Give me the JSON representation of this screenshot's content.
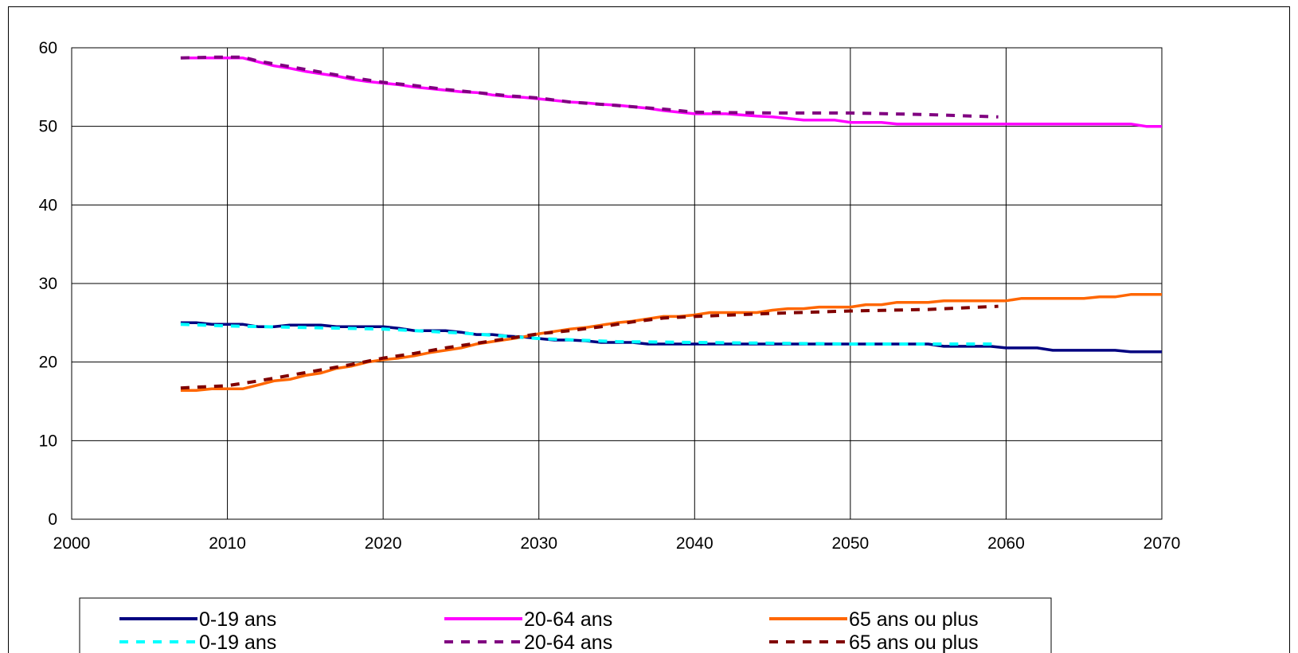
{
  "chart_data": {
    "type": "line",
    "title": "",
    "xlabel": "",
    "ylabel": "",
    "xlim": [
      2000,
      2070
    ],
    "ylim": [
      0,
      60
    ],
    "x_ticks": [
      2000,
      2010,
      2020,
      2030,
      2040,
      2050,
      2060,
      2070
    ],
    "y_ticks": [
      0,
      10,
      20,
      30,
      40,
      50,
      60
    ],
    "grid": true,
    "legend_placement": "bottom",
    "series": [
      {
        "name": "0-19 ans",
        "style": "solid",
        "color": "#000080",
        "x": [
          2007,
          2008,
          2009,
          2010,
          2011,
          2012,
          2013,
          2014,
          2015,
          2016,
          2017,
          2018,
          2019,
          2020,
          2021,
          2022,
          2023,
          2024,
          2025,
          2026,
          2027,
          2028,
          2029,
          2030,
          2031,
          2032,
          2033,
          2034,
          2035,
          2036,
          2037,
          2038,
          2039,
          2040,
          2045,
          2050,
          2055,
          2056,
          2059,
          2060,
          2062,
          2063,
          2065,
          2067,
          2068,
          2070
        ],
        "values": [
          25.0,
          25.0,
          24.8,
          24.8,
          24.8,
          24.5,
          24.5,
          24.7,
          24.7,
          24.7,
          24.5,
          24.5,
          24.5,
          24.5,
          24.3,
          24.0,
          24.0,
          24.0,
          23.8,
          23.5,
          23.5,
          23.3,
          23.2,
          23.0,
          22.8,
          22.8,
          22.7,
          22.5,
          22.5,
          22.5,
          22.3,
          22.3,
          22.3,
          22.3,
          22.3,
          22.3,
          22.3,
          22.0,
          22.0,
          21.8,
          21.8,
          21.5,
          21.5,
          21.5,
          21.3,
          21.3
        ]
      },
      {
        "name": "20-64 ans",
        "style": "solid",
        "color": "#ff00ff",
        "x": [
          2007,
          2009,
          2011,
          2012,
          2013,
          2014,
          2015,
          2016,
          2017,
          2018,
          2019,
          2020,
          2021,
          2022,
          2023,
          2024,
          2025,
          2026,
          2027,
          2028,
          2029,
          2030,
          2031,
          2032,
          2033,
          2034,
          2035,
          2036,
          2037,
          2038,
          2039,
          2040,
          2042,
          2044,
          2045,
          2046,
          2047,
          2049,
          2050,
          2052,
          2053,
          2055,
          2060,
          2065,
          2068,
          2069,
          2070
        ],
        "values": [
          58.7,
          58.7,
          58.7,
          58.2,
          57.7,
          57.4,
          57.0,
          56.7,
          56.4,
          56.0,
          55.7,
          55.5,
          55.3,
          55.0,
          54.8,
          54.6,
          54.4,
          54.3,
          54.0,
          53.8,
          53.7,
          53.5,
          53.3,
          53.1,
          53.0,
          52.8,
          52.7,
          52.5,
          52.3,
          52.0,
          51.8,
          51.6,
          51.6,
          51.3,
          51.2,
          51.0,
          50.8,
          50.8,
          50.5,
          50.5,
          50.3,
          50.3,
          50.3,
          50.3,
          50.3,
          50.0,
          50.0
        ]
      },
      {
        "name": "65 ans ou plus",
        "style": "solid",
        "color": "#ff6600",
        "x": [
          2007,
          2008,
          2009,
          2010,
          2011,
          2012,
          2013,
          2014,
          2015,
          2016,
          2017,
          2018,
          2019,
          2020,
          2021,
          2022,
          2023,
          2024,
          2025,
          2026,
          2027,
          2028,
          2029,
          2030,
          2031,
          2032,
          2033,
          2034,
          2035,
          2036,
          2037,
          2038,
          2039,
          2040,
          2041,
          2042,
          2043,
          2044,
          2045,
          2046,
          2047,
          2048,
          2050,
          2051,
          2052,
          2053,
          2055,
          2056,
          2060,
          2061,
          2065,
          2066,
          2067,
          2068,
          2070
        ],
        "values": [
          16.4,
          16.4,
          16.6,
          16.6,
          16.6,
          17.1,
          17.6,
          17.8,
          18.3,
          18.6,
          19.2,
          19.5,
          20.0,
          20.3,
          20.5,
          20.8,
          21.2,
          21.5,
          21.8,
          22.3,
          22.6,
          22.9,
          23.2,
          23.6,
          23.9,
          24.2,
          24.4,
          24.7,
          25.0,
          25.2,
          25.5,
          25.8,
          25.8,
          26.0,
          26.3,
          26.3,
          26.3,
          26.3,
          26.6,
          26.8,
          26.8,
          27.0,
          27.0,
          27.3,
          27.3,
          27.6,
          27.6,
          27.8,
          27.8,
          28.1,
          28.1,
          28.3,
          28.3,
          28.6,
          28.6
        ]
      },
      {
        "name": "0-19 ans",
        "style": "dashed",
        "color": "#00ffff",
        "x": [
          2007,
          2010,
          2015,
          2020,
          2025,
          2030,
          2035,
          2040,
          2045,
          2050,
          2055,
          2059.5
        ],
        "values": [
          24.8,
          24.6,
          24.4,
          24.2,
          23.7,
          23.0,
          22.6,
          22.5,
          22.4,
          22.3,
          22.3,
          22.3
        ]
      },
      {
        "name": "20-64 ans",
        "style": "dashed",
        "color": "#800080",
        "x": [
          2007,
          2009,
          2011,
          2012,
          2014,
          2016,
          2018,
          2020,
          2022,
          2024,
          2026,
          2028,
          2030,
          2032,
          2034,
          2036,
          2038,
          2040,
          2045,
          2050,
          2055,
          2059.5
        ],
        "values": [
          58.7,
          58.8,
          58.8,
          58.3,
          57.6,
          56.9,
          56.2,
          55.6,
          55.2,
          54.7,
          54.3,
          53.9,
          53.6,
          53.1,
          52.8,
          52.5,
          52.2,
          51.8,
          51.7,
          51.7,
          51.5,
          51.2
        ]
      },
      {
        "name": "65 ans ou plus",
        "style": "dashed",
        "color": "#800000",
        "x": [
          2007,
          2010,
          2012,
          2014,
          2016,
          2018,
          2020,
          2022,
          2024,
          2026,
          2028,
          2030,
          2032,
          2034,
          2036,
          2038,
          2040,
          2045,
          2050,
          2055,
          2059.5
        ],
        "values": [
          16.7,
          17.0,
          17.6,
          18.3,
          19.0,
          19.7,
          20.5,
          21.1,
          21.8,
          22.4,
          23.0,
          23.6,
          24.0,
          24.5,
          25.1,
          25.6,
          25.8,
          26.2,
          26.5,
          26.7,
          27.1
        ]
      }
    ]
  }
}
